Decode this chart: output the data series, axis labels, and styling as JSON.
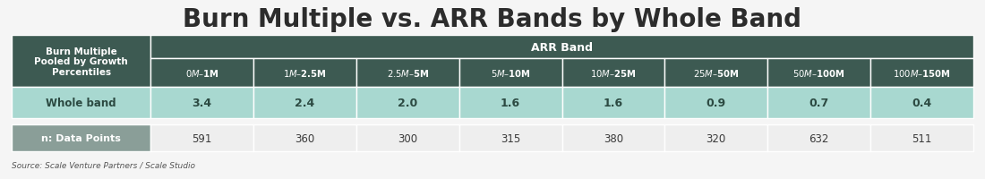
{
  "title": "Burn Multiple vs. ARR Bands by Whole Band",
  "title_fontsize": 20,
  "background_color": "#f5f5f5",
  "header_bg_color": "#3d5a52",
  "header_text_color": "#ffffff",
  "subheader_bg_color": "#3d5a52",
  "whole_band_bg_color": "#a8d8d0",
  "data_points_bg_color": "#8a9e98",
  "data_points_text_color": "#ffffff",
  "values_bg_color": "#a8d8d0",
  "n_values_bg_color": "#eeeeee",
  "row_label_bg_color": "#a8d8d0",
  "col_header_label": "ARR Band",
  "row_header_label": "Burn Multiple\nPooled by Growth\nPercentiles",
  "arr_bands": [
    "$0M – $1M",
    "$1M – $2.5M",
    "$2.5M – $5M",
    "$5M – $10M",
    "$10M – $25M",
    "$25M – $50M",
    "$50M – $100M",
    "$100M – $150M"
  ],
  "row_label": "Whole band",
  "values": [
    "3.4",
    "2.4",
    "2.0",
    "1.6",
    "1.6",
    "0.9",
    "0.7",
    "0.4"
  ],
  "n_label": "n: Data Points",
  "n_values": [
    "591",
    "360",
    "300",
    "315",
    "380",
    "320",
    "632",
    "511"
  ],
  "source_text": "Source: Scale Venture Partners / Scale Studio"
}
